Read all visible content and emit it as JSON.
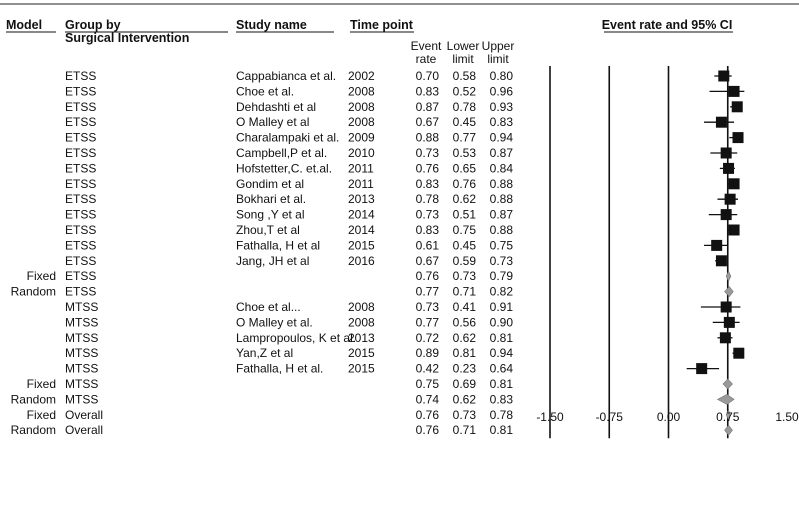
{
  "headers": {
    "model": "Model",
    "group_line1": "Group by",
    "group_line2": "Surgical Intervention",
    "study": "Study name",
    "time": "Time point",
    "plot": "Event rate and 95% CI",
    "event_line1": "Event",
    "event_line2": "rate",
    "lower_line1": "Lower",
    "lower_line2": "limit",
    "upper_line1": "Upper",
    "upper_line2": "limit"
  },
  "chart_data": {
    "type": "forest",
    "title": "Event rate and 95% CI",
    "xlim": [
      -1.5,
      1.5
    ],
    "x_ticks": [
      "-1.50",
      "-0.75",
      "0.00",
      "0.75",
      "1.50"
    ],
    "x_tick_values": [
      -1.5,
      -0.75,
      0.0,
      0.75,
      1.5
    ],
    "reference_lines": [
      -1.5,
      -0.75,
      0.0,
      0.75
    ],
    "marker_colors": {
      "study": "#111111",
      "summary": "#9a9a9a"
    },
    "rows": [
      {
        "model": "",
        "group": "ETSS",
        "study": "Cappabianca et al.",
        "year": "2002",
        "rate": "0.70",
        "lower": "0.58",
        "upper": "0.80",
        "kind": "study"
      },
      {
        "model": "",
        "group": "ETSS",
        "study": "Choe et al.",
        "year": "2008",
        "rate": "0.83",
        "lower": "0.52",
        "upper": "0.96",
        "kind": "study"
      },
      {
        "model": "",
        "group": "ETSS",
        "study": "Dehdashti et al",
        "year": "2008",
        "rate": "0.87",
        "lower": "0.78",
        "upper": "0.93",
        "kind": "study"
      },
      {
        "model": "",
        "group": "ETSS",
        "study": "O Malley et al",
        "year": "2008",
        "rate": "0.67",
        "lower": "0.45",
        "upper": "0.83",
        "kind": "study"
      },
      {
        "model": "",
        "group": "ETSS",
        "study": "Charalampaki et al.",
        "year": "2009",
        "rate": "0.88",
        "lower": "0.77",
        "upper": "0.94",
        "kind": "study"
      },
      {
        "model": "",
        "group": "ETSS",
        "study": "Campbell,P et al.",
        "year": "2010",
        "rate": "0.73",
        "lower": "0.53",
        "upper": "0.87",
        "kind": "study"
      },
      {
        "model": "",
        "group": "ETSS",
        "study": "Hofstetter,C. et.al.",
        "year": "2011",
        "rate": "0.76",
        "lower": "0.65",
        "upper": "0.84",
        "kind": "study"
      },
      {
        "model": "",
        "group": "ETSS",
        "study": "Gondim  et al",
        "year": "2011",
        "rate": "0.83",
        "lower": "0.76",
        "upper": "0.88",
        "kind": "study"
      },
      {
        "model": "",
        "group": "ETSS",
        "study": "Bokhari et al.",
        "year": "2013",
        "rate": "0.78",
        "lower": "0.62",
        "upper": "0.88",
        "kind": "study"
      },
      {
        "model": "",
        "group": "ETSS",
        "study": "Song ,Y et al",
        "year": "2014",
        "rate": "0.73",
        "lower": "0.51",
        "upper": "0.87",
        "kind": "study"
      },
      {
        "model": "",
        "group": "ETSS",
        "study": "Zhou,T et al",
        "year": "2014",
        "rate": "0.83",
        "lower": "0.75",
        "upper": "0.88",
        "kind": "study"
      },
      {
        "model": "",
        "group": "ETSS",
        "study": "Fathalla, H et al",
        "year": "2015",
        "rate": "0.61",
        "lower": "0.45",
        "upper": "0.75",
        "kind": "study"
      },
      {
        "model": "",
        "group": "ETSS",
        "study": "Jang, JH et al",
        "year": "2016",
        "rate": "0.67",
        "lower": "0.59",
        "upper": "0.73",
        "kind": "study"
      },
      {
        "model": "Fixed",
        "group": "ETSS",
        "study": "",
        "year": "",
        "rate": "0.76",
        "lower": "0.73",
        "upper": "0.79",
        "kind": "summary"
      },
      {
        "model": "Random",
        "group": "ETSS",
        "study": "",
        "year": "",
        "rate": "0.77",
        "lower": "0.71",
        "upper": "0.82",
        "kind": "summary"
      },
      {
        "model": "",
        "group": "MTSS",
        "study": "Choe et al...",
        "year": "2008",
        "rate": "0.73",
        "lower": "0.41",
        "upper": "0.91",
        "kind": "study"
      },
      {
        "model": "",
        "group": "MTSS",
        "study": "O Malley et al.",
        "year": "2008",
        "rate": "0.77",
        "lower": "0.56",
        "upper": "0.90",
        "kind": "study"
      },
      {
        "model": "",
        "group": "MTSS",
        "study": "Lampropoulos, K et al.",
        "year": "2013",
        "rate": "0.72",
        "lower": "0.62",
        "upper": "0.81",
        "kind": "study"
      },
      {
        "model": "",
        "group": "MTSS",
        "study": "Yan,Z  et al",
        "year": "2015",
        "rate": "0.89",
        "lower": "0.81",
        "upper": "0.94",
        "kind": "study"
      },
      {
        "model": "",
        "group": "MTSS",
        "study": "Fathalla, H et al.",
        "year": "2015",
        "rate": "0.42",
        "lower": "0.23",
        "upper": "0.64",
        "kind": "study"
      },
      {
        "model": "Fixed",
        "group": "MTSS",
        "study": "",
        "year": "",
        "rate": "0.75",
        "lower": "0.69",
        "upper": "0.81",
        "kind": "summary"
      },
      {
        "model": "Random",
        "group": "MTSS",
        "study": "",
        "year": "",
        "rate": "0.74",
        "lower": "0.62",
        "upper": "0.83",
        "kind": "summary"
      },
      {
        "model": "Fixed",
        "group": "Overall",
        "study": "",
        "year": "",
        "rate": "0.76",
        "lower": "0.73",
        "upper": "0.78",
        "kind": "summary"
      },
      {
        "model": "Random",
        "group": "Overall",
        "study": "",
        "year": "",
        "rate": "0.76",
        "lower": "0.71",
        "upper": "0.81",
        "kind": "summary"
      }
    ]
  }
}
